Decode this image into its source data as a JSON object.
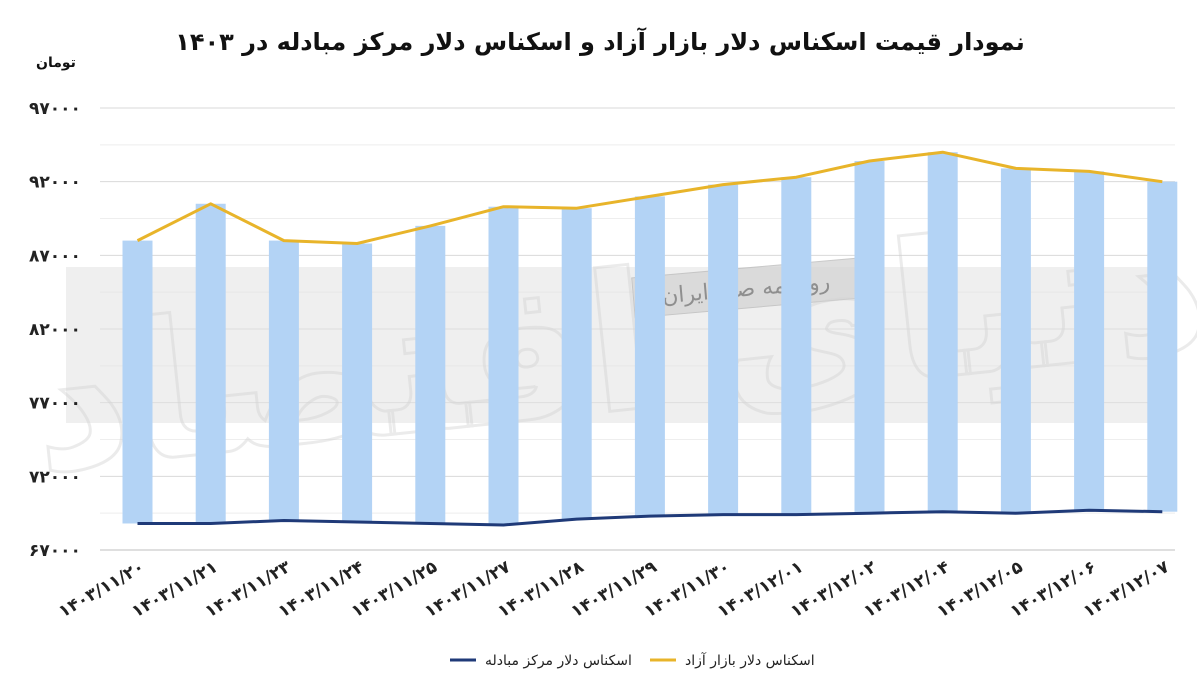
{
  "chart_data": {
    "type": "bar+line",
    "title": "نمودار قیمت اسکناس دلار بازار آزاد و اسکناس دلار مرکز مبادله در ۱۴۰۳",
    "ylabel": "تومان",
    "ylim": [
      67000,
      97000
    ],
    "yticks": [
      "۶۷۰۰۰",
      "۷۲۰۰۰",
      "۷۷۰۰۰",
      "۸۲۰۰۰",
      "۸۷۰۰۰",
      "۹۲۰۰۰",
      "۹۷۰۰۰"
    ],
    "ytick_values": [
      67000,
      72000,
      77000,
      82000,
      87000,
      92000,
      97000
    ],
    "grid": true,
    "categories": [
      "۱۴۰۳/۱۱/۲۰",
      "۱۴۰۳/۱۱/۲۱",
      "۱۴۰۳/۱۱/۲۳",
      "۱۴۰۳/۱۱/۲۴",
      "۱۴۰۳/۱۱/۲۵",
      "۱۴۰۳/۱۱/۲۷",
      "۱۴۰۳/۱۱/۲۸",
      "۱۴۰۳/۱۱/۲۹",
      "۱۴۰۳/۱۱/۳۰",
      "۱۴۰۳/۱۲/۰۱",
      "۱۴۰۳/۱۲/۰۲",
      "۱۴۰۳/۱۲/۰۴",
      "۱۴۰۳/۱۲/۰۵",
      "۱۴۰۳/۱۲/۰۶",
      "۱۴۰۳/۱۲/۰۷"
    ],
    "series": [
      {
        "name": "اسکناس دلار بازار آزاد",
        "kind": "bar+line",
        "color": "#e8b42a",
        "bar_color": "#b3d3f5",
        "values": [
          88000,
          90500,
          88000,
          87800,
          89000,
          90300,
          90200,
          91000,
          91800,
          92300,
          93400,
          94000,
          92900,
          92700,
          92000
        ]
      },
      {
        "name": "اسکناس دلار مرکز مبادله",
        "kind": "line",
        "color": "#1f3a78",
        "values": [
          68800,
          68800,
          69000,
          68900,
          68800,
          68700,
          69100,
          69300,
          69400,
          69400,
          69500,
          69600,
          69500,
          69700,
          69600
        ]
      }
    ],
    "legend_position": "bottom"
  },
  "watermark": {
    "text": "روزنامه صبح ایران",
    "logo_text": "دنیای اقتصاد"
  }
}
